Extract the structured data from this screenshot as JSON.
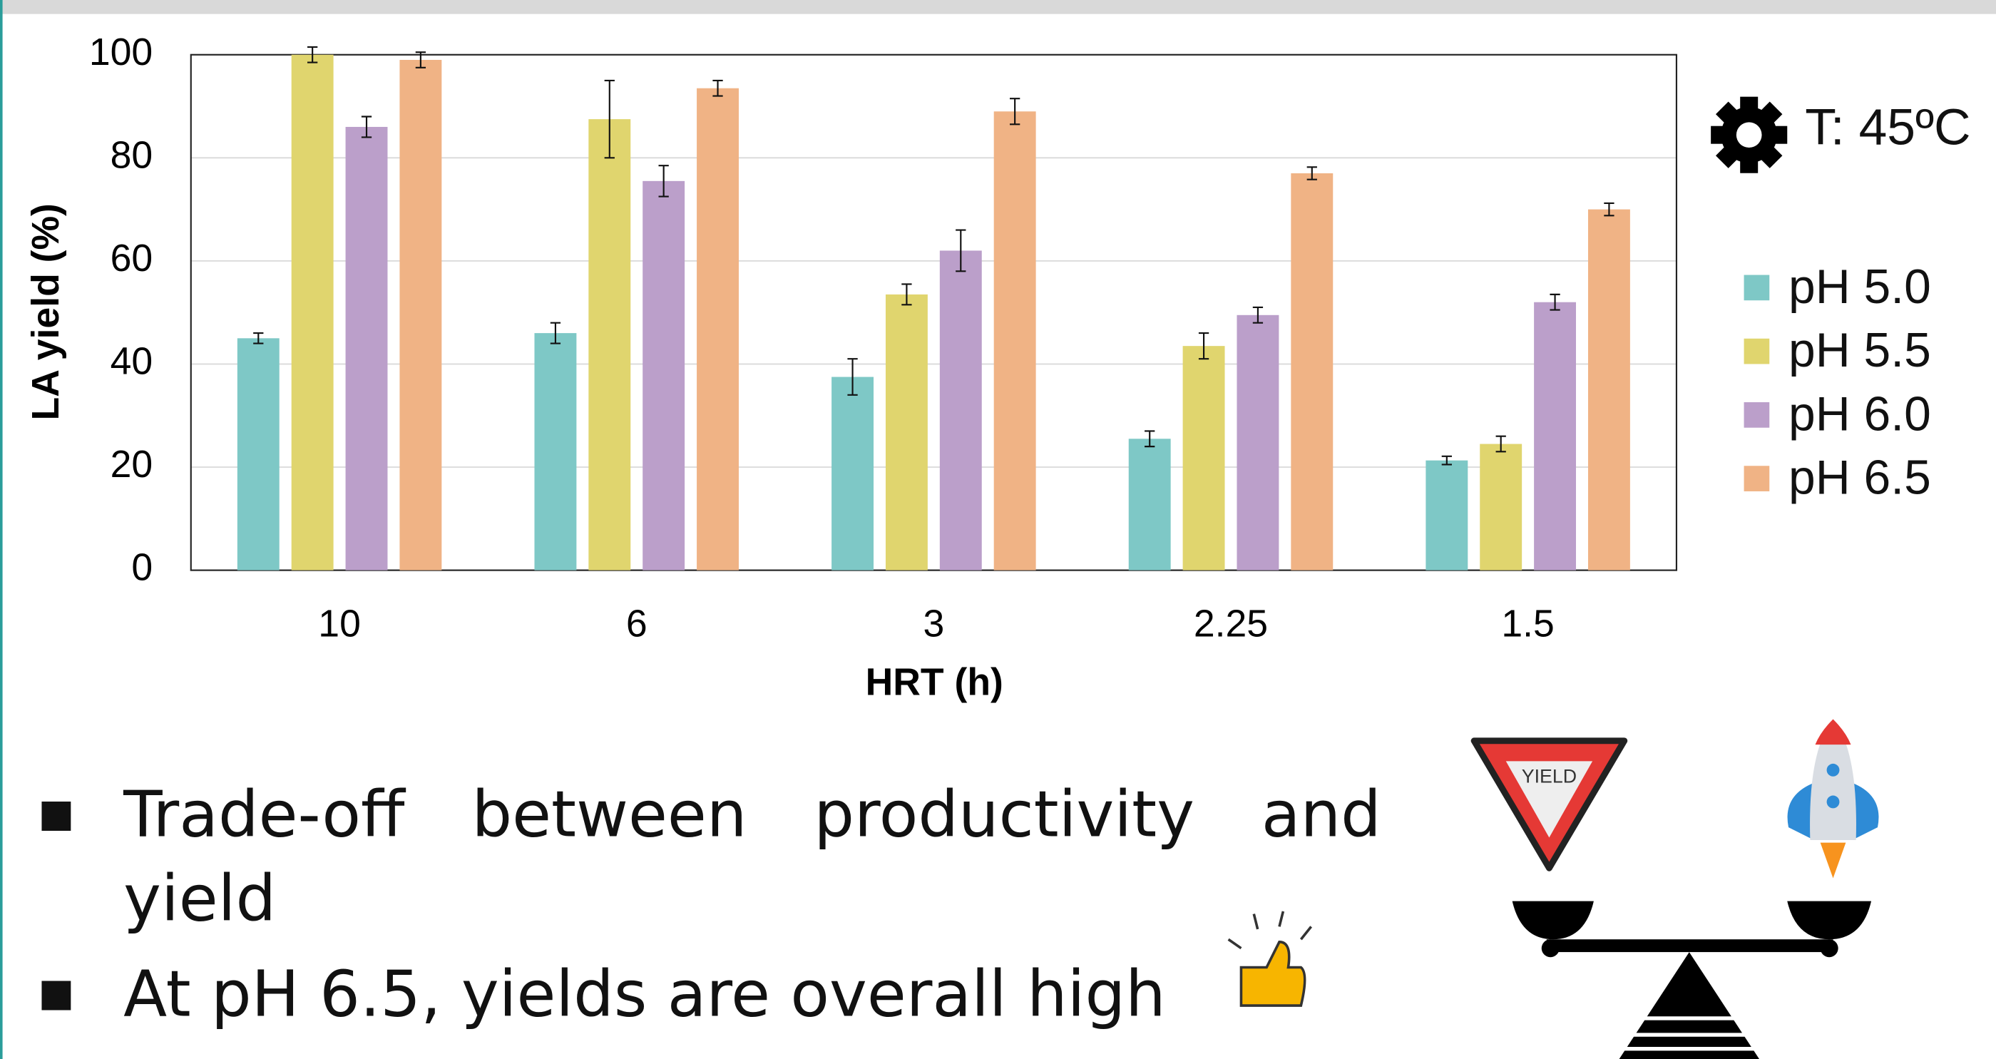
{
  "chart_data": {
    "type": "bar",
    "categories": [
      "10",
      "6",
      "3",
      "2.25",
      "1.5"
    ],
    "x_label": "HRT (h)",
    "y_label": "LA yield (%)",
    "ylim": [
      0,
      100
    ],
    "yticks": [
      0,
      20,
      40,
      60,
      80,
      100
    ],
    "grid": true,
    "legend": "right",
    "series": [
      {
        "name": "pH 5.0",
        "color": "#7ec8c6",
        "values": [
          45,
          46,
          37.5,
          25.5,
          21.3
        ],
        "errors": [
          1,
          2,
          3.5,
          1.5,
          0.8
        ]
      },
      {
        "name": "pH 5.5",
        "color": "#e0d56e",
        "values": [
          100,
          87.5,
          53.5,
          43.5,
          24.5
        ],
        "errors": [
          1.5,
          7.5,
          2,
          2.5,
          1.5
        ]
      },
      {
        "name": "pH 6.0",
        "color": "#bb9fca",
        "values": [
          86,
          75.5,
          62,
          49.5,
          52
        ],
        "errors": [
          2,
          3,
          4,
          1.5,
          1.5
        ]
      },
      {
        "name": "pH 6.5",
        "color": "#f0b385",
        "values": [
          99,
          93.5,
          89,
          77,
          70
        ],
        "errors": [
          1.5,
          1.5,
          2.5,
          1.2,
          1.2
        ]
      }
    ],
    "annotation": "T: 45ºC"
  },
  "bullets": [
    "Trade-off between productivity and yield",
    "At pH 6.5, yields are overall high"
  ],
  "icons": {
    "yield_sign": "YIELD"
  }
}
